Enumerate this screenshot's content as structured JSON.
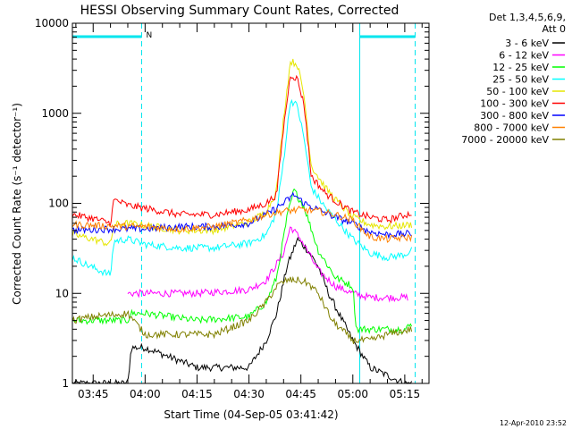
{
  "chart_data": {
    "type": "line",
    "title": "HESSI Observing Summary Count Rates, Corrected",
    "xlabel": "Start Time (04-Sep-05 03:41:42)",
    "ylabel": "Corrected Count Rate (s⁻¹ detector⁻¹)",
    "y_scale": "log",
    "ylim": [
      1,
      10000
    ],
    "xlim": [
      "03:39",
      "05:22"
    ],
    "x_ticks": [
      "03:45",
      "04:00",
      "04:15",
      "04:30",
      "04:45",
      "05:00",
      "05:15"
    ],
    "y_ticks": [
      "1",
      "10",
      "100",
      "1000",
      "10000"
    ],
    "legend_header_1": "Det 1,3,4,5,6,9,",
    "legend_header_2": "Att 0",
    "legend_position": "right",
    "timestamp": "12-Apr-2010 23:52",
    "annotations": {
      "night_marker": "N",
      "night_bars": [
        [
          "03:39",
          "03:59"
        ],
        [
          "05:02",
          "05:18"
        ]
      ],
      "saa_lines": [
        "03:39",
        "05:02"
      ],
      "dashed_lines": [
        "03:59",
        "05:18"
      ],
      "color": "#00e5ee"
    },
    "series": [
      {
        "name": "3 - 6 keV",
        "color": "#000000",
        "x": [
          "03:39",
          "03:45",
          "03:55",
          "03:56",
          "04:00",
          "04:15",
          "04:30",
          "04:35",
          "04:38",
          "04:41",
          "04:44",
          "04:47",
          "04:50",
          "04:53",
          "04:57",
          "05:00",
          "05:05",
          "05:15",
          "05:17"
        ],
        "y": [
          1,
          1,
          1,
          2.5,
          2.5,
          1.5,
          1.5,
          3,
          6,
          20,
          40,
          30,
          20,
          10,
          5,
          3,
          1.5,
          1,
          1
        ]
      },
      {
        "name": "6 - 12 keV",
        "color": "#ff00ff",
        "x": [
          "03:55",
          "04:00",
          "04:15",
          "04:30",
          "04:35",
          "04:40",
          "04:42",
          "04:45",
          "04:50",
          "04:55",
          "05:00",
          "05:05",
          "05:16"
        ],
        "y": [
          10,
          10,
          10,
          11,
          14,
          28,
          55,
          40,
          18,
          12,
          10,
          9,
          9
        ]
      },
      {
        "name": "12 - 25 keV",
        "color": "#00ff00",
        "x": [
          "03:39",
          "03:45",
          "03:55",
          "03:56",
          "04:00",
          "04:15",
          "04:30",
          "04:35",
          "04:38",
          "04:41",
          "04:43",
          "04:46",
          "04:50",
          "04:55",
          "05:00",
          "05:01",
          "05:05",
          "05:15",
          "05:17"
        ],
        "y": [
          5,
          5,
          5,
          6,
          6,
          5,
          5.5,
          8,
          15,
          70,
          140,
          90,
          30,
          15,
          12,
          4,
          4,
          4,
          4.5
        ]
      },
      {
        "name": "25 - 50 keV",
        "color": "#00ffff",
        "x": [
          "03:39",
          "03:44",
          "03:50",
          "03:51",
          "03:55",
          "04:00",
          "04:10",
          "04:20",
          "04:30",
          "04:35",
          "04:38",
          "04:40",
          "04:42",
          "04:44",
          "04:46",
          "04:48",
          "04:52",
          "04:56",
          "05:00",
          "05:05",
          "05:10",
          "05:15",
          "05:17"
        ],
        "y": [
          25,
          20,
          16,
          38,
          40,
          35,
          32,
          32,
          36,
          45,
          80,
          300,
          1400,
          1200,
          500,
          150,
          90,
          60,
          40,
          28,
          25,
          27,
          30
        ]
      },
      {
        "name": "50 - 100 keV",
        "color": "#e6e600",
        "x": [
          "03:39",
          "03:45",
          "03:50",
          "03:51",
          "03:55",
          "04:00",
          "04:10",
          "04:20",
          "04:30",
          "04:35",
          "04:38",
          "04:40",
          "04:42",
          "04:44",
          "04:46",
          "04:48",
          "04:52",
          "04:56",
          "05:00",
          "05:05",
          "05:10",
          "05:17"
        ],
        "y": [
          45,
          40,
          35,
          58,
          60,
          57,
          50,
          50,
          62,
          80,
          140,
          900,
          3800,
          3500,
          1500,
          260,
          150,
          100,
          70,
          58,
          55,
          58
        ]
      },
      {
        "name": "100 - 300 keV",
        "color": "#ff0000",
        "x": [
          "03:39",
          "03:45",
          "03:50",
          "03:51",
          "03:55",
          "04:00",
          "04:10",
          "04:20",
          "04:30",
          "04:35",
          "04:38",
          "04:40",
          "04:42",
          "04:44",
          "04:46",
          "04:48",
          "04:52",
          "04:56",
          "05:00",
          "05:05",
          "05:10",
          "05:17"
        ],
        "y": [
          75,
          68,
          60,
          110,
          95,
          88,
          75,
          75,
          85,
          100,
          125,
          700,
          2700,
          2400,
          1200,
          200,
          130,
          100,
          80,
          70,
          65,
          78
        ]
      },
      {
        "name": "300 - 800 keV",
        "color": "#0000ff",
        "x": [
          "03:39",
          "03:50",
          "04:00",
          "04:10",
          "04:20",
          "04:30",
          "04:35",
          "04:40",
          "04:43",
          "04:46",
          "04:50",
          "04:55",
          "05:00",
          "05:05",
          "05:10",
          "05:17"
        ],
        "y": [
          50,
          52,
          52,
          55,
          55,
          60,
          75,
          100,
          125,
          100,
          85,
          70,
          60,
          48,
          45,
          46
        ]
      },
      {
        "name": "800 - 7000 keV",
        "color": "#ff8000",
        "x": [
          "03:39",
          "03:50",
          "04:00",
          "04:10",
          "04:20",
          "04:30",
          "04:35",
          "04:40",
          "04:45",
          "04:50",
          "04:55",
          "05:00",
          "05:05",
          "05:10",
          "05:17"
        ],
        "y": [
          58,
          56,
          55,
          52,
          55,
          65,
          75,
          82,
          85,
          82,
          75,
          65,
          42,
          40,
          42
        ]
      },
      {
        "name": "7000 - 20000 keV",
        "color": "#808000",
        "x": [
          "03:39",
          "03:45",
          "03:55",
          "04:00",
          "04:10",
          "04:20",
          "04:30",
          "04:35",
          "04:38",
          "04:41",
          "04:44",
          "04:47",
          "04:50",
          "04:54",
          "05:00",
          "05:05",
          "05:10",
          "05:17"
        ],
        "y": [
          5,
          5.5,
          6,
          3.5,
          3.5,
          3.5,
          5,
          8,
          12,
          14,
          14,
          13,
          10,
          5,
          3,
          3,
          3.5,
          4
        ]
      }
    ]
  }
}
